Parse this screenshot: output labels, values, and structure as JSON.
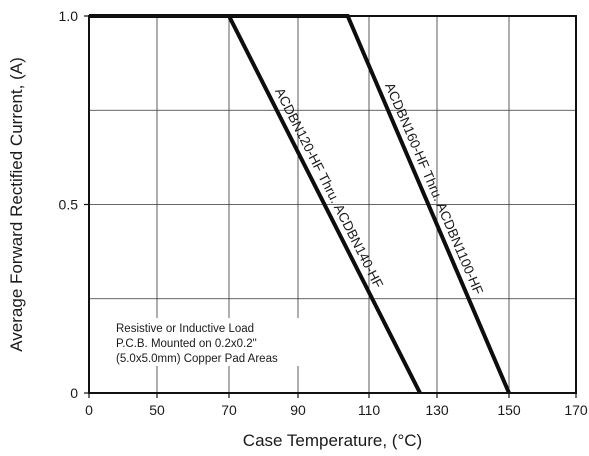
{
  "chart_data": {
    "type": "line",
    "xlabel": "Case Temperature, (°C)",
    "ylabel": "Average Forward Rectified Current, (A)",
    "xlim": [
      0,
      170
    ],
    "ylim": [
      0,
      1.0
    ],
    "x_ticks": [
      0,
      50,
      70,
      90,
      110,
      130,
      150,
      170
    ],
    "x_tick_labels": [
      "0",
      "50",
      "70",
      "90",
      "110",
      "130",
      "150",
      "170"
    ],
    "y_ticks": [
      0,
      0.5,
      1.0
    ],
    "y_tick_labels": [
      "0",
      "0.5",
      "1.0"
    ],
    "y_minor_grid": [
      0.25,
      0.75
    ],
    "grid": true,
    "series": [
      {
        "name": "ACDBN120-HF Thru. ACDBN140-HF",
        "x": [
          0,
          70,
          125
        ],
        "y": [
          1.0,
          1.0,
          0
        ]
      },
      {
        "name": "ACDBN160-HF Thru. ACDBN1100-HF",
        "x": [
          0,
          104,
          150
        ],
        "y": [
          1.0,
          1.0,
          0
        ]
      }
    ],
    "annotation": [
      "Resistive or Inductive Load",
      "P.C.B. Mounted on 0.2x0.2\"",
      "(5.0x5.0mm) Copper Pad Areas"
    ],
    "colors": {
      "line": "#0d0d0d",
      "grid": "#333333",
      "background": "#ffffff"
    }
  }
}
